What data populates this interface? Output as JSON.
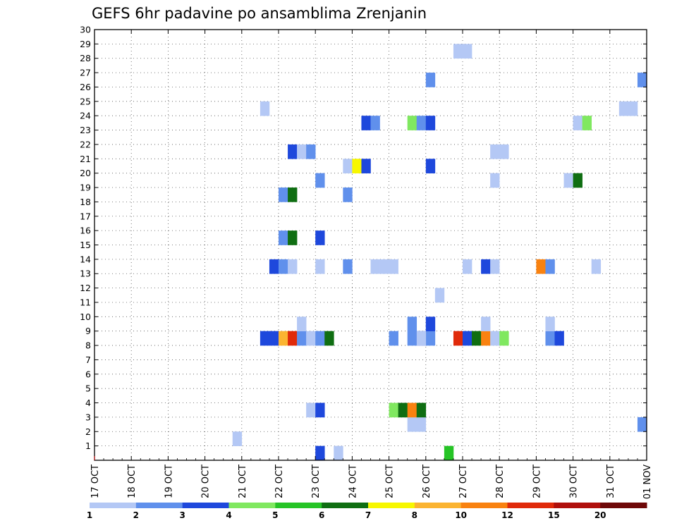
{
  "chart_data": {
    "type": "heatmap",
    "title": "GEFS 6hr padavine po ansamblima Zrenjanin",
    "xlabel": "",
    "ylabel": "",
    "x_ticks": [
      "17 OCT",
      "18 OCT",
      "19 OCT",
      "20 OCT",
      "21 OCT",
      "22 OCT",
      "23 OCT",
      "24 OCT",
      "25 OCT",
      "26 OCT",
      "27 OCT",
      "28 OCT",
      "29 OCT",
      "30 OCT",
      "31 OCT",
      "01 NOV"
    ],
    "xlim": [
      0,
      60
    ],
    "y_ticks": [
      1,
      2,
      3,
      4,
      5,
      6,
      7,
      8,
      9,
      10,
      11,
      12,
      13,
      14,
      15,
      16,
      17,
      18,
      19,
      20,
      21,
      22,
      23,
      24,
      25,
      26,
      27,
      28,
      29,
      30
    ],
    "ylim": [
      0,
      30
    ],
    "grid": true,
    "colorbar": {
      "levels": [
        "1",
        "2",
        "3",
        "4",
        "5",
        "6",
        "7",
        "8",
        "10",
        "12",
        "15",
        "20"
      ],
      "colors": [
        "#b4c8f5",
        "#6090ec",
        "#1e48dc",
        "#80e860",
        "#26c426",
        "#0f6e12",
        "#f7f700",
        "#fbb431",
        "#f98210",
        "#e02a0a",
        "#b0100c",
        "#6e0808"
      ]
    },
    "cells": [
      {
        "step": 24,
        "member": 0,
        "bin": 2
      },
      {
        "step": 26,
        "member": 0,
        "bin": 0
      },
      {
        "step": 38,
        "member": 0,
        "bin": 4
      },
      {
        "step": 15,
        "member": 1,
        "bin": 0
      },
      {
        "step": 34,
        "member": 2,
        "bin": 0
      },
      {
        "step": 35,
        "member": 2,
        "bin": 0
      },
      {
        "step": 59,
        "member": 2,
        "bin": 1
      },
      {
        "step": 23,
        "member": 3,
        "bin": 0
      },
      {
        "step": 24,
        "member": 3,
        "bin": 2
      },
      {
        "step": 32,
        "member": 3,
        "bin": 3
      },
      {
        "step": 33,
        "member": 3,
        "bin": 5
      },
      {
        "step": 34,
        "member": 3,
        "bin": 8
      },
      {
        "step": 35,
        "member": 3,
        "bin": 5
      },
      {
        "step": 32,
        "member": 8,
        "bin": 1
      },
      {
        "step": 34,
        "member": 8,
        "bin": 1
      },
      {
        "step": 35,
        "member": 8,
        "bin": 2
      },
      {
        "step": 36,
        "member": 8,
        "bin": 1
      },
      {
        "step": 18,
        "member": 8,
        "bin": 2
      },
      {
        "step": 19,
        "member": 8,
        "bin": 2
      },
      {
        "step": 20,
        "member": 8,
        "bin": 7
      },
      {
        "step": 21,
        "member": 8,
        "bin": 9
      },
      {
        "step": 22,
        "member": 8,
        "bin": 1
      },
      {
        "step": 23,
        "member": 8,
        "bin": 0
      },
      {
        "step": 24,
        "member": 8,
        "bin": 1
      },
      {
        "step": 25,
        "member": 8,
        "bin": 5
      },
      {
        "step": 35,
        "member": 8,
        "bin": 0
      },
      {
        "step": 39,
        "member": 8,
        "bin": 9
      },
      {
        "step": 40,
        "member": 8,
        "bin": 2
      },
      {
        "step": 41,
        "member": 8,
        "bin": 5
      },
      {
        "step": 42,
        "member": 8,
        "bin": 8
      },
      {
        "step": 43,
        "member": 8,
        "bin": 0
      },
      {
        "step": 44,
        "member": 8,
        "bin": 3
      },
      {
        "step": 49,
        "member": 8,
        "bin": 1
      },
      {
        "step": 50,
        "member": 8,
        "bin": 2
      },
      {
        "step": 22,
        "member": 9,
        "bin": 0
      },
      {
        "step": 34,
        "member": 9,
        "bin": 1
      },
      {
        "step": 36,
        "member": 9,
        "bin": 2
      },
      {
        "step": 42,
        "member": 9,
        "bin": 0
      },
      {
        "step": 49,
        "member": 9,
        "bin": 0
      },
      {
        "step": 37,
        "member": 11,
        "bin": 0
      },
      {
        "step": 19,
        "member": 13,
        "bin": 2
      },
      {
        "step": 20,
        "member": 13,
        "bin": 1
      },
      {
        "step": 21,
        "member": 13,
        "bin": 0
      },
      {
        "step": 24,
        "member": 13,
        "bin": 0
      },
      {
        "step": 27,
        "member": 13,
        "bin": 1
      },
      {
        "step": 30,
        "member": 13,
        "bin": 0
      },
      {
        "step": 31,
        "member": 13,
        "bin": 0
      },
      {
        "step": 32,
        "member": 13,
        "bin": 0
      },
      {
        "step": 40,
        "member": 13,
        "bin": 0
      },
      {
        "step": 42,
        "member": 13,
        "bin": 2
      },
      {
        "step": 43,
        "member": 13,
        "bin": 0
      },
      {
        "step": 48,
        "member": 13,
        "bin": 8
      },
      {
        "step": 49,
        "member": 13,
        "bin": 1
      },
      {
        "step": 54,
        "member": 13,
        "bin": 0
      },
      {
        "step": 20,
        "member": 15,
        "bin": 1
      },
      {
        "step": 21,
        "member": 15,
        "bin": 5
      },
      {
        "step": 24,
        "member": 15,
        "bin": 2
      },
      {
        "step": 20,
        "member": 18,
        "bin": 1
      },
      {
        "step": 21,
        "member": 18,
        "bin": 5
      },
      {
        "step": 27,
        "member": 18,
        "bin": 1
      },
      {
        "step": 24,
        "member": 19,
        "bin": 1
      },
      {
        "step": 43,
        "member": 19,
        "bin": 0
      },
      {
        "step": 51,
        "member": 19,
        "bin": 0
      },
      {
        "step": 52,
        "member": 19,
        "bin": 5
      },
      {
        "step": 27,
        "member": 20,
        "bin": 0
      },
      {
        "step": 28,
        "member": 20,
        "bin": 6
      },
      {
        "step": 29,
        "member": 20,
        "bin": 2
      },
      {
        "step": 36,
        "member": 20,
        "bin": 2
      },
      {
        "step": 21,
        "member": 21,
        "bin": 2
      },
      {
        "step": 22,
        "member": 21,
        "bin": 0
      },
      {
        "step": 23,
        "member": 21,
        "bin": 1
      },
      {
        "step": 43,
        "member": 21,
        "bin": 0
      },
      {
        "step": 44,
        "member": 21,
        "bin": 0
      },
      {
        "step": 29,
        "member": 23,
        "bin": 2
      },
      {
        "step": 30,
        "member": 23,
        "bin": 1
      },
      {
        "step": 34,
        "member": 23,
        "bin": 3
      },
      {
        "step": 35,
        "member": 23,
        "bin": 1
      },
      {
        "step": 36,
        "member": 23,
        "bin": 2
      },
      {
        "step": 52,
        "member": 23,
        "bin": 0
      },
      {
        "step": 53,
        "member": 23,
        "bin": 3
      },
      {
        "step": 18,
        "member": 24,
        "bin": 0
      },
      {
        "step": 57,
        "member": 24,
        "bin": 0
      },
      {
        "step": 58,
        "member": 24,
        "bin": 0
      },
      {
        "step": 36,
        "member": 26,
        "bin": 1
      },
      {
        "step": 59,
        "member": 26,
        "bin": 1
      },
      {
        "step": 39,
        "member": 28,
        "bin": 0
      },
      {
        "step": 40,
        "member": 28,
        "bin": 0
      }
    ]
  }
}
